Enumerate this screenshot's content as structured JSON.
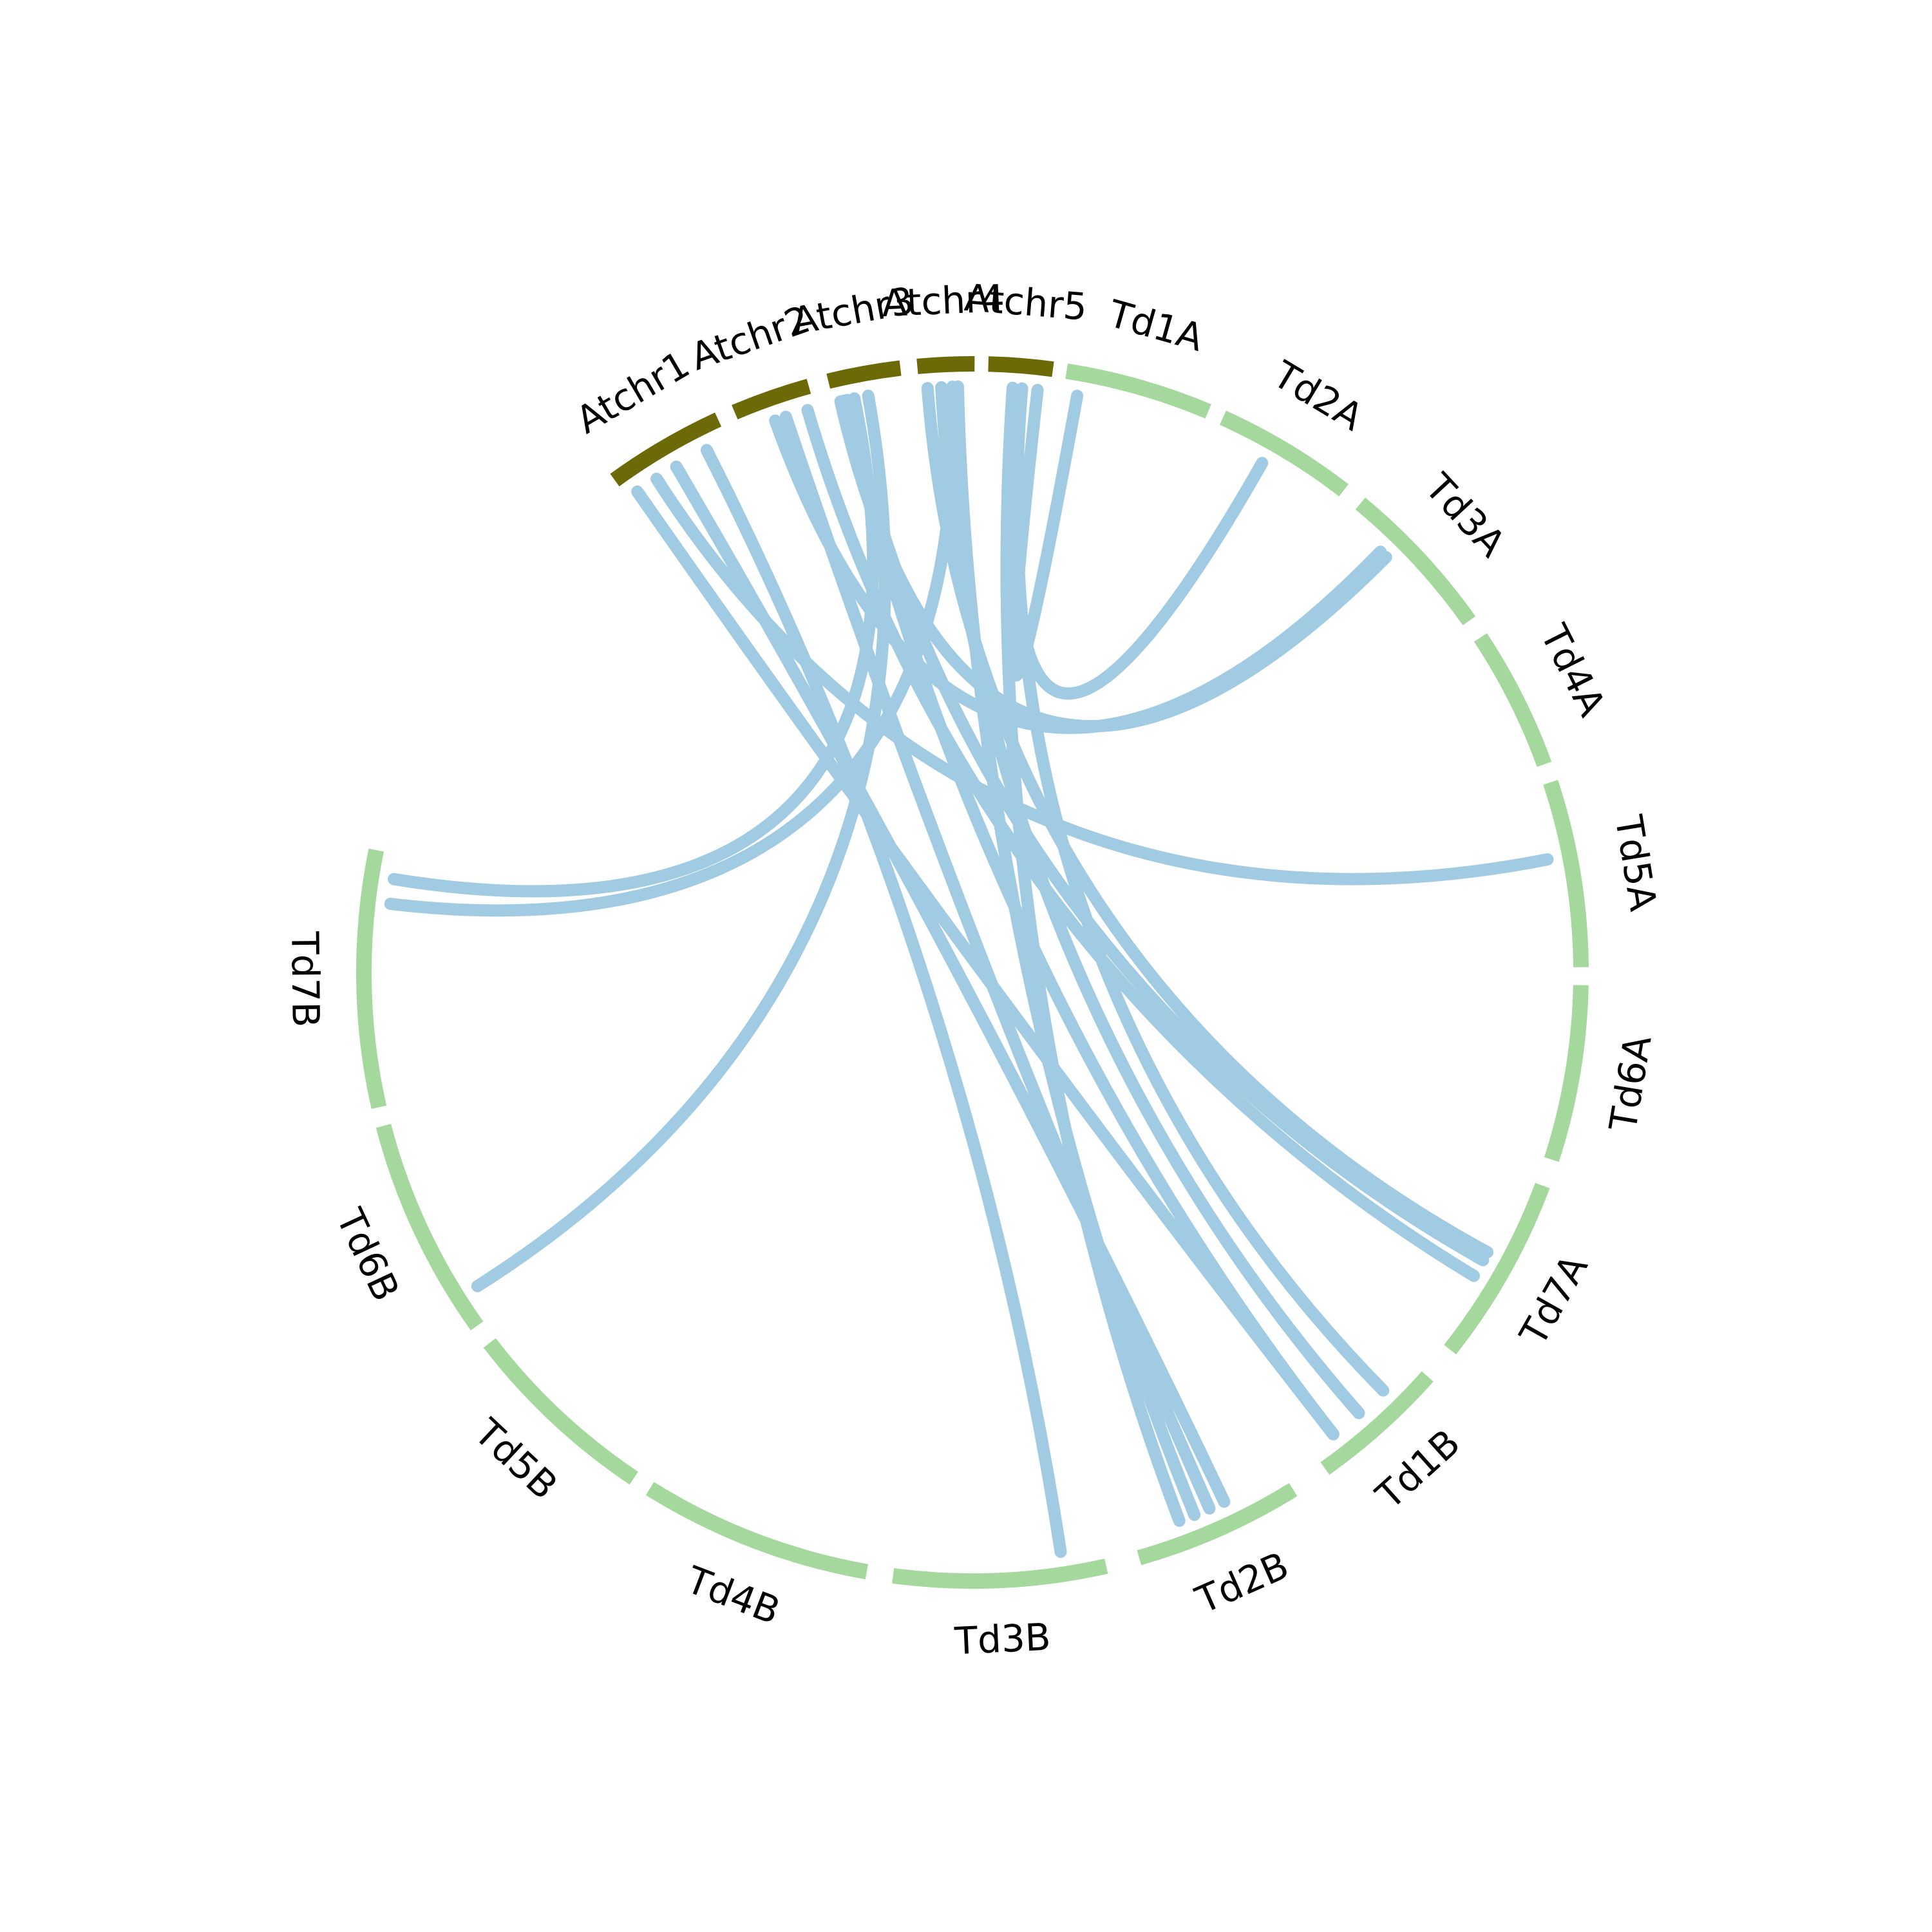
{
  "chart_data": {
    "type": "chord",
    "groups": [
      {
        "id": "Atchr1",
        "label": "Atchr1",
        "species": "arabidopsis"
      },
      {
        "id": "Atchr2",
        "label": "Atchr2",
        "species": "arabidopsis"
      },
      {
        "id": "Atchr3",
        "label": "Atchr3",
        "species": "arabidopsis"
      },
      {
        "id": "Atchr4",
        "label": "Atchr4",
        "species": "arabidopsis"
      },
      {
        "id": "Atchr5",
        "label": "Atchr5",
        "species": "arabidopsis"
      },
      {
        "id": "Td1A",
        "label": "Td1A",
        "species": "wheat"
      },
      {
        "id": "Td2A",
        "label": "Td2A",
        "species": "wheat"
      },
      {
        "id": "Td3A",
        "label": "Td3A",
        "species": "wheat"
      },
      {
        "id": "Td4A",
        "label": "Td4A",
        "species": "wheat"
      },
      {
        "id": "Td5A",
        "label": "Td5A",
        "species": "wheat"
      },
      {
        "id": "Td6A",
        "label": "Td6A",
        "species": "wheat"
      },
      {
        "id": "Td7A",
        "label": "Td7A",
        "species": "wheat"
      },
      {
        "id": "Td1B",
        "label": "Td1B",
        "species": "wheat"
      },
      {
        "id": "Td2B",
        "label": "Td2B",
        "species": "wheat"
      },
      {
        "id": "Td3B",
        "label": "Td3B",
        "species": "wheat"
      },
      {
        "id": "Td4B",
        "label": "Td4B",
        "species": "wheat"
      },
      {
        "id": "Td5B",
        "label": "Td5B",
        "species": "wheat"
      },
      {
        "id": "Td6B",
        "label": "Td6B",
        "species": "wheat"
      },
      {
        "id": "Td7B",
        "label": "Td7B",
        "species": "wheat"
      }
    ],
    "colors": {
      "arabidopsis": "#6b6a06",
      "wheat": "#a4d89c",
      "link": "#a1cbe2",
      "label": "#000000"
    },
    "links": [
      {
        "source": "Atchr5",
        "target": "Td1A"
      },
      {
        "source": "Atchr5",
        "target": "Td2A"
      },
      {
        "source": "Atchr5",
        "target": "Td1B"
      },
      {
        "source": "Atchr5",
        "target": "Td2B"
      },
      {
        "source": "Atchr4",
        "target": "Td2B"
      },
      {
        "source": "Atchr4",
        "target": "Td1B"
      },
      {
        "source": "Atchr4",
        "target": "Td7A"
      },
      {
        "source": "Atchr4",
        "target": "Td7B"
      },
      {
        "source": "Atchr3",
        "target": "Td3A"
      },
      {
        "source": "Atchr3",
        "target": "Td7A"
      },
      {
        "source": "Atchr3",
        "target": "Td1B"
      },
      {
        "source": "Atchr3",
        "target": "Td7B"
      },
      {
        "source": "Atchr3",
        "target": "Td6B"
      },
      {
        "source": "Atchr2",
        "target": "Td7A"
      },
      {
        "source": "Atchr2",
        "target": "Td2B"
      },
      {
        "source": "Atchr2",
        "target": "Td3A"
      },
      {
        "source": "Atchr1",
        "target": "Td3B"
      },
      {
        "source": "Atchr1",
        "target": "Td2B"
      },
      {
        "source": "Atchr1",
        "target": "Td5A"
      },
      {
        "source": "Atchr1",
        "target": "Td1B"
      }
    ]
  }
}
